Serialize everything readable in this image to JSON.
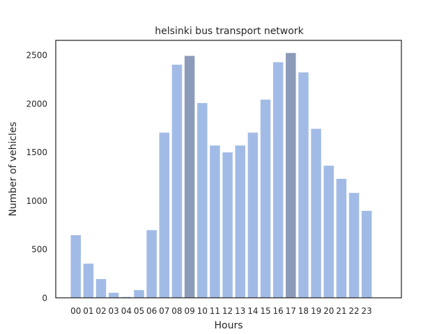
{
  "chart_data": {
    "type": "bar",
    "title": "helsinki bus transport network",
    "xlabel": "Hours",
    "ylabel": "Number of vehicles",
    "categories": [
      "00",
      "01",
      "02",
      "03",
      "04",
      "05",
      "06",
      "07",
      "08",
      "09",
      "10",
      "11",
      "12",
      "13",
      "14",
      "15",
      "16",
      "17",
      "18",
      "19",
      "20",
      "21",
      "22",
      "23"
    ],
    "values": [
      645,
      352,
      193,
      52,
      9,
      80,
      697,
      1700,
      2400,
      2490,
      2005,
      1568,
      1497,
      1568,
      1700,
      2040,
      2425,
      2520,
      2320,
      1740,
      1360,
      1225,
      1080,
      895
    ],
    "highlighted": [
      "09",
      "17"
    ],
    "ylim": [
      0,
      2650
    ],
    "yticks": [
      0,
      500,
      1000,
      1500,
      2000,
      2500
    ],
    "grid": false,
    "legend": "none",
    "colors": {
      "bar": "#a2bbe6",
      "highlight": "#8c9bb9",
      "axis": "#262626"
    }
  }
}
